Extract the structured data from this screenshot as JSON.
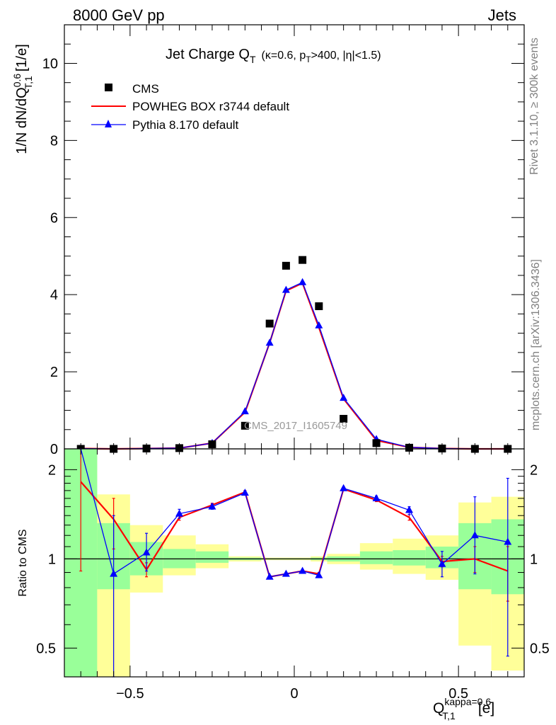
{
  "header": {
    "left": "8000 GeV pp",
    "right": "Jets"
  },
  "side_labels": {
    "rivet": "Rivet 3.1.10, ≥ 300k events",
    "mcplots": "mcplots.cern.ch [arXiv:1306.3436]"
  },
  "colors": {
    "cms": "#000000",
    "powheg": "#ff0000",
    "pythia": "#0000ff",
    "band_inner": "#99ff99",
    "band_outer": "#ffff99"
  },
  "chart_data": [
    {
      "type": "scatter",
      "panel": "main",
      "title": "Jet Charge Q",
      "title_sub": "T",
      "title_note": "(κ=0.6, p",
      "title_note_sub": "T",
      "title_note_rest": ">400, |η|<1.5)",
      "ylabel": "1/N dN/dQ",
      "ylabel_sup": "0.6",
      "ylabel_sub": "T,1",
      "ylabel_unit": "[1/e]",
      "watermark": "CMS_2017_I1605749",
      "xlim": [
        -0.7,
        0.7
      ],
      "ylim": [
        0,
        11
      ],
      "yticks": [
        0,
        2,
        4,
        6,
        8,
        10
      ],
      "ytick_labels": [
        "0",
        "2",
        "4",
        "6",
        "8",
        "10"
      ],
      "legend_position": "top-left",
      "x": [
        -0.65,
        -0.55,
        -0.45,
        -0.35,
        -0.25,
        -0.15,
        -0.075,
        -0.025,
        0.025,
        0.075,
        0.15,
        0.25,
        0.35,
        0.45,
        0.55,
        0.65
      ],
      "series": [
        {
          "name": "CMS",
          "style": "marker-square",
          "values": [
            0.0,
            0.0,
            0.01,
            0.02,
            0.12,
            0.6,
            3.25,
            4.75,
            4.9,
            3.7,
            0.78,
            0.15,
            0.03,
            0.01,
            0.0,
            0.0
          ]
        },
        {
          "name": "POWHEG BOX r3744 default",
          "style": "line",
          "values": [
            0.01,
            0.0,
            0.01,
            0.02,
            0.15,
            0.95,
            2.75,
            4.1,
            4.3,
            3.15,
            1.3,
            0.22,
            0.04,
            0.01,
            0.0,
            0.0
          ]
        },
        {
          "name": "Pythia 8.170 default",
          "style": "line-triangle",
          "values": [
            0.01,
            0.0,
            0.01,
            0.02,
            0.15,
            0.97,
            2.75,
            4.12,
            4.32,
            3.2,
            1.32,
            0.25,
            0.04,
            0.01,
            0.0,
            0.0
          ]
        }
      ]
    },
    {
      "type": "line",
      "panel": "ratio",
      "ylabel": "Ratio to CMS",
      "xlabel": "Q",
      "xlabel_sup": "kappa=0.6",
      "xlabel_sub": "T,1",
      "xlabel_unit": "[e]",
      "xlim": [
        -0.7,
        0.7
      ],
      "ylim": [
        0.4,
        2.35
      ],
      "log_y": true,
      "xticks": [
        -0.5,
        0,
        0.5
      ],
      "xtick_labels": [
        "−0.5",
        "0",
        "0.5"
      ],
      "yticks": [
        0.5,
        1,
        2
      ],
      "ytick_labels": [
        "0.5",
        "1",
        "2"
      ],
      "bands": [
        {
          "x0": -0.7,
          "x1": -0.6,
          "inner": [
            0.4,
            2.35
          ],
          "outer": [
            0.4,
            2.35
          ]
        },
        {
          "x0": -0.6,
          "x1": -0.5,
          "inner": [
            0.79,
            1.32
          ],
          "outer": [
            0.4,
            1.65
          ]
        },
        {
          "x0": -0.5,
          "x1": -0.4,
          "inner": [
            0.88,
            1.14
          ],
          "outer": [
            0.77,
            1.3
          ]
        },
        {
          "x0": -0.4,
          "x1": -0.3,
          "inner": [
            0.93,
            1.08
          ],
          "outer": [
            0.88,
            1.2
          ]
        },
        {
          "x0": -0.3,
          "x1": -0.2,
          "inner": [
            0.97,
            1.06
          ],
          "outer": [
            0.93,
            1.12
          ]
        },
        {
          "x0": -0.2,
          "x1": -0.1,
          "inner": [
            0.99,
            1.01
          ],
          "outer": [
            0.98,
            1.02
          ]
        },
        {
          "x0": -0.1,
          "x1": 0.05,
          "inner": [
            0.995,
            1.005
          ],
          "outer": [
            0.99,
            1.01
          ]
        },
        {
          "x0": 0.05,
          "x1": 0.1,
          "inner": [
            0.99,
            1.01
          ],
          "outer": [
            0.98,
            1.02
          ]
        },
        {
          "x0": 0.1,
          "x1": 0.2,
          "inner": [
            0.98,
            1.02
          ],
          "outer": [
            0.96,
            1.04
          ]
        },
        {
          "x0": 0.2,
          "x1": 0.3,
          "inner": [
            0.96,
            1.06
          ],
          "outer": [
            0.92,
            1.13
          ]
        },
        {
          "x0": 0.3,
          "x1": 0.4,
          "inner": [
            0.95,
            1.07
          ],
          "outer": [
            0.89,
            1.17
          ]
        },
        {
          "x0": 0.4,
          "x1": 0.5,
          "inner": [
            0.93,
            1.1
          ],
          "outer": [
            0.85,
            1.2
          ]
        },
        {
          "x0": 0.5,
          "x1": 0.6,
          "inner": [
            0.79,
            1.32
          ],
          "outer": [
            0.51,
            1.55
          ]
        },
        {
          "x0": 0.6,
          "x1": 0.7,
          "inner": [
            0.76,
            1.36
          ],
          "outer": [
            0.42,
            1.62
          ]
        }
      ],
      "x": [
        -0.65,
        -0.55,
        -0.45,
        -0.35,
        -0.25,
        -0.15,
        -0.075,
        -0.025,
        0.025,
        0.075,
        0.15,
        0.25,
        0.35,
        0.45,
        0.55,
        0.65
      ],
      "series": [
        {
          "name": "POWHEG BOX r3744 default",
          "values": [
            1.82,
            1.36,
            0.92,
            1.38,
            1.52,
            1.68,
            0.87,
            0.89,
            0.91,
            0.89,
            1.72,
            1.58,
            1.38,
            0.98,
            1.0,
            0.91
          ],
          "err_low": [
            0.91,
            1.08,
            0.87,
            1.35,
            1.5,
            1.66,
            0.86,
            0.88,
            0.9,
            0.88,
            1.7,
            1.56,
            1.35,
            0.94,
            0.9,
            0.72
          ],
          "err_high": [
            2.35,
            1.6,
            0.97,
            1.41,
            1.54,
            1.7,
            0.88,
            0.9,
            0.92,
            0.9,
            1.74,
            1.6,
            1.41,
            1.02,
            1.1,
            1.1
          ]
        },
        {
          "name": "Pythia 8.170 default",
          "values": [
            3.0,
            0.89,
            1.05,
            1.42,
            1.5,
            1.67,
            0.87,
            0.89,
            0.91,
            0.88,
            1.73,
            1.6,
            1.46,
            0.96,
            1.2,
            1.14
          ],
          "err_low": [
            2.35,
            0.4,
            0.91,
            1.37,
            1.47,
            1.65,
            0.86,
            0.88,
            0.9,
            0.87,
            1.71,
            1.57,
            1.41,
            0.87,
            0.89,
            0.47
          ],
          "err_high": [
            3.0,
            1.4,
            1.22,
            1.47,
            1.53,
            1.69,
            0.88,
            0.9,
            0.92,
            0.89,
            1.75,
            1.63,
            1.5,
            1.06,
            1.62,
            1.87
          ]
        }
      ]
    }
  ]
}
